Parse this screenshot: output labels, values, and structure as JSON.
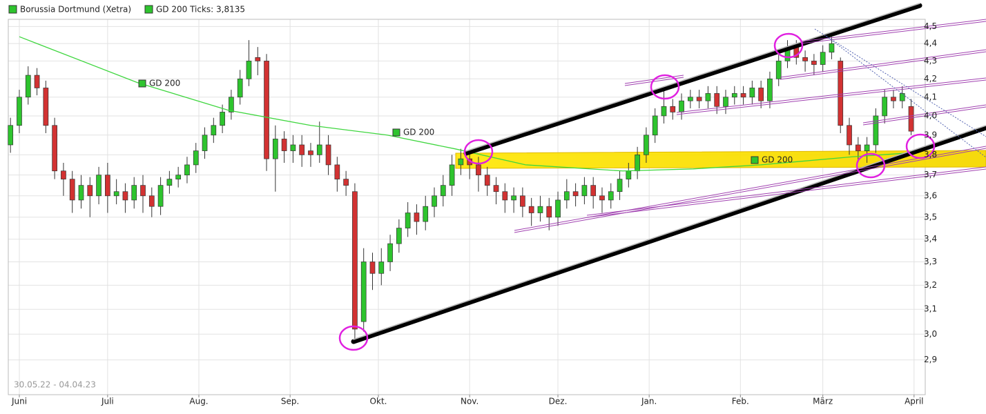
{
  "chart_data": {
    "type": "candlestick",
    "title": "Borussia Dortmund (Xetra)",
    "color": "#2ec42e",
    "down_color": "#d23232",
    "date_range": "30.05.22 - 04.04.23",
    "legend_indicator": "GD 200 Ticks: 3,8135",
    "annotations": [
      "GD 200",
      "GD 200",
      "GD 200"
    ],
    "log_scale": true,
    "grid": true,
    "xlim": [
      -1.75,
      309.8
    ],
    "xticks": [
      {
        "value": 2,
        "label": "Juni"
      },
      {
        "value": 32,
        "label": "Juli"
      },
      {
        "value": 63,
        "label": "Aug."
      },
      {
        "value": 94,
        "label": "Sep."
      },
      {
        "value": 124,
        "label": "Okt."
      },
      {
        "value": 155,
        "label": "Nov."
      },
      {
        "value": 185,
        "label": "Dez."
      },
      {
        "value": 216,
        "label": "Jan."
      },
      {
        "value": 247,
        "label": "Feb."
      },
      {
        "value": 275,
        "label": "März"
      },
      {
        "value": 306,
        "label": "April"
      }
    ],
    "ylim": [
      2.77,
      4.66
    ],
    "yticks": [
      {
        "value": 2.9,
        "label": "2,9"
      },
      {
        "value": 3.0,
        "label": "3,0"
      },
      {
        "value": 3.1,
        "label": "3,1"
      },
      {
        "value": 3.2,
        "label": "3,2"
      },
      {
        "value": 3.3,
        "label": "3,3"
      },
      {
        "value": 3.4,
        "label": "3,4"
      },
      {
        "value": 3.5,
        "label": "3,5"
      },
      {
        "value": 3.6,
        "label": "3,6"
      },
      {
        "value": 3.7,
        "label": "3,7"
      },
      {
        "value": 3.8,
        "label": "3,8"
      },
      {
        "value": 3.9,
        "label": "3,9"
      },
      {
        "value": 4.0,
        "label": "4,0"
      },
      {
        "value": 4.1,
        "label": "4,1"
      },
      {
        "value": 4.2,
        "label": "4,2"
      },
      {
        "value": 4.3,
        "label": "4,3"
      },
      {
        "value": 4.4,
        "label": "4,4"
      },
      {
        "value": 4.5,
        "label": "4,5"
      }
    ],
    "x": [
      -1,
      2,
      5,
      8,
      11,
      14,
      17,
      20,
      23,
      26,
      29,
      32,
      35,
      38,
      41,
      44,
      47,
      50,
      53,
      56,
      59,
      62,
      65,
      68,
      71,
      74,
      77,
      80,
      83,
      86,
      89,
      92,
      95,
      98,
      101,
      104,
      107,
      110,
      113,
      116,
      119,
      122,
      125,
      128,
      131,
      134,
      137,
      140,
      143,
      146,
      149,
      152,
      155,
      158,
      161,
      164,
      167,
      170,
      173,
      176,
      179,
      182,
      185,
      188,
      191,
      194,
      197,
      200,
      203,
      206,
      209,
      212,
      215,
      218,
      221,
      224,
      227,
      230,
      233,
      236,
      239,
      242,
      245,
      248,
      251,
      254,
      257,
      260,
      263,
      266,
      269,
      272,
      275,
      278,
      281,
      284,
      287,
      290,
      293,
      296,
      299,
      302,
      305
    ],
    "open": [
      3.85,
      3.95,
      4.1,
      4.22,
      4.15,
      3.95,
      3.72,
      3.68,
      3.58,
      3.65,
      3.6,
      3.7,
      3.6,
      3.62,
      3.58,
      3.65,
      3.6,
      3.55,
      3.65,
      3.68,
      3.7,
      3.75,
      3.82,
      3.9,
      3.95,
      4.02,
      4.1,
      4.2,
      4.32,
      4.3,
      3.78,
      3.88,
      3.82,
      3.85,
      3.82,
      3.8,
      3.85,
      3.75,
      3.68,
      3.62,
      3.05,
      3.3,
      3.25,
      3.3,
      3.38,
      3.45,
      3.52,
      3.48,
      3.55,
      3.6,
      3.65,
      3.75,
      3.78,
      3.75,
      3.7,
      3.65,
      3.62,
      3.58,
      3.6,
      3.55,
      3.52,
      3.55,
      3.5,
      3.58,
      3.62,
      3.6,
      3.65,
      3.6,
      3.58,
      3.62,
      3.68,
      3.72,
      3.8,
      3.9,
      4.0,
      4.05,
      4.02,
      4.08,
      4.1,
      4.08,
      4.12,
      4.05,
      4.1,
      4.12,
      4.1,
      4.15,
      4.08,
      4.2,
      4.3,
      4.38,
      4.32,
      4.3,
      4.28,
      4.35,
      4.3,
      3.95,
      3.85,
      3.82,
      3.85,
      4.0,
      4.1,
      4.08,
      4.05
    ],
    "high": [
      3.99,
      4.14,
      4.27,
      4.26,
      4.19,
      3.99,
      3.76,
      3.72,
      3.7,
      3.69,
      3.74,
      3.76,
      3.68,
      3.66,
      3.69,
      3.7,
      3.64,
      3.69,
      3.72,
      3.74,
      3.79,
      3.86,
      3.94,
      3.99,
      4.06,
      4.14,
      4.25,
      4.42,
      4.38,
      4.34,
      3.95,
      3.92,
      3.9,
      3.9,
      3.86,
      3.97,
      3.9,
      3.79,
      3.72,
      3.66,
      3.36,
      3.34,
      3.36,
      3.42,
      3.49,
      3.57,
      3.56,
      3.6,
      3.64,
      3.7,
      3.8,
      3.83,
      3.82,
      3.79,
      3.74,
      3.69,
      3.66,
      3.64,
      3.64,
      3.59,
      3.6,
      3.59,
      3.62,
      3.68,
      3.66,
      3.69,
      3.69,
      3.64,
      3.66,
      3.72,
      3.76,
      3.84,
      3.94,
      4.04,
      4.15,
      4.09,
      4.12,
      4.14,
      4.14,
      4.16,
      4.16,
      4.14,
      4.16,
      4.16,
      4.19,
      4.19,
      4.24,
      4.34,
      4.42,
      4.42,
      4.36,
      4.34,
      4.39,
      4.44,
      4.32,
      3.99,
      3.89,
      3.89,
      4.04,
      4.14,
      4.14,
      4.16,
      4.09
    ],
    "low": [
      3.81,
      3.91,
      4.06,
      4.11,
      3.91,
      3.68,
      3.6,
      3.52,
      3.54,
      3.5,
      3.56,
      3.52,
      3.56,
      3.52,
      3.54,
      3.52,
      3.5,
      3.51,
      3.61,
      3.64,
      3.66,
      3.71,
      3.78,
      3.86,
      3.91,
      3.98,
      4.06,
      4.16,
      4.22,
      3.72,
      3.62,
      3.76,
      3.76,
      3.74,
      3.74,
      3.76,
      3.7,
      3.62,
      3.6,
      2.97,
      3.01,
      3.18,
      3.2,
      3.26,
      3.34,
      3.41,
      3.42,
      3.44,
      3.5,
      3.55,
      3.6,
      3.7,
      3.68,
      3.62,
      3.6,
      3.56,
      3.52,
      3.52,
      3.5,
      3.46,
      3.48,
      3.44,
      3.46,
      3.54,
      3.55,
      3.56,
      3.54,
      3.52,
      3.54,
      3.58,
      3.64,
      3.68,
      3.76,
      3.86,
      3.96,
      3.98,
      3.98,
      4.04,
      4.04,
      4.04,
      4.01,
      4.01,
      4.06,
      4.06,
      4.06,
      4.04,
      4.04,
      4.16,
      4.26,
      4.28,
      4.24,
      4.22,
      4.24,
      4.31,
      3.91,
      3.8,
      3.77,
      3.76,
      3.81,
      3.96,
      4.04,
      4.04,
      3.9
    ],
    "close": [
      3.95,
      4.1,
      4.22,
      4.15,
      3.95,
      3.72,
      3.68,
      3.58,
      3.65,
      3.6,
      3.7,
      3.6,
      3.62,
      3.58,
      3.65,
      3.6,
      3.55,
      3.65,
      3.68,
      3.7,
      3.75,
      3.82,
      3.9,
      3.95,
      4.02,
      4.1,
      4.2,
      4.3,
      4.3,
      3.78,
      3.88,
      3.82,
      3.85,
      3.8,
      3.8,
      3.85,
      3.75,
      3.68,
      3.65,
      3.02,
      3.3,
      3.25,
      3.3,
      3.38,
      3.45,
      3.52,
      3.48,
      3.55,
      3.6,
      3.65,
      3.75,
      3.78,
      3.75,
      3.7,
      3.65,
      3.62,
      3.58,
      3.6,
      3.55,
      3.52,
      3.55,
      3.5,
      3.58,
      3.62,
      3.6,
      3.65,
      3.6,
      3.58,
      3.62,
      3.68,
      3.72,
      3.8,
      3.9,
      4.0,
      4.05,
      4.02,
      4.08,
      4.1,
      4.08,
      4.12,
      4.05,
      4.1,
      4.12,
      4.1,
      4.15,
      4.08,
      4.2,
      4.3,
      4.38,
      4.32,
      4.3,
      4.28,
      4.35,
      4.4,
      3.95,
      3.85,
      3.82,
      3.85,
      4.0,
      4.1,
      4.08,
      4.12,
      3.92
    ],
    "series": [
      {
        "name": "GD 200",
        "color": "#3ed63e",
        "x": [
          2,
          9.5,
          42,
          73,
          101,
          127,
          150,
          174,
          207,
          231,
          254,
          285,
          305
        ],
        "values": [
          4.44,
          4.39,
          4.18,
          4.03,
          3.95,
          3.9,
          3.83,
          3.75,
          3.72,
          3.73,
          3.75,
          3.79,
          3.81
        ]
      }
    ]
  }
}
